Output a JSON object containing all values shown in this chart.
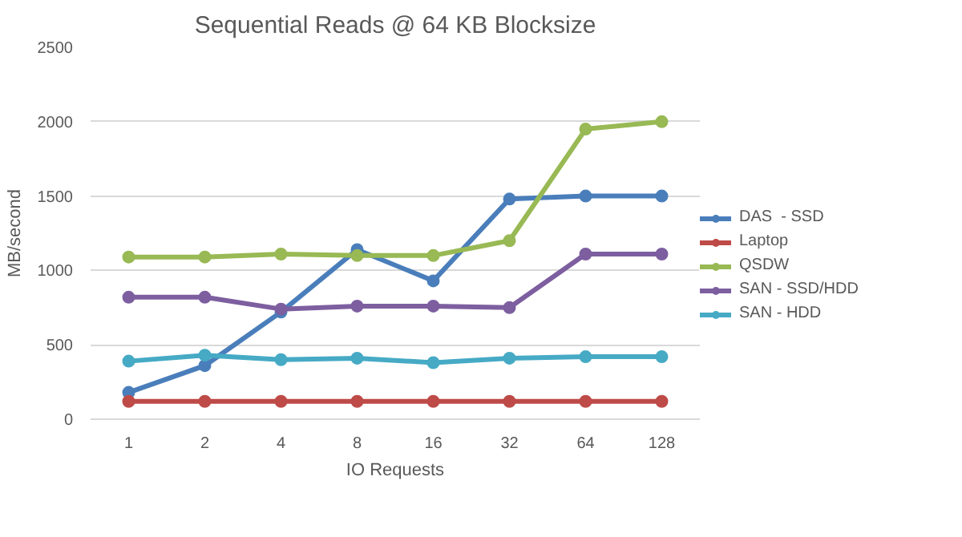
{
  "chart_data": {
    "type": "line",
    "title": "Sequential Reads @ 64 KB Blocksize",
    "xlabel": "IO Requests",
    "ylabel": "MB/second",
    "categories": [
      "1",
      "2",
      "4",
      "8",
      "16",
      "32",
      "64",
      "128"
    ],
    "series": [
      {
        "name": "DAS  - SSD",
        "color": "#4a7ebb",
        "values": [
          180,
          360,
          720,
          1140,
          930,
          1480,
          1500,
          1500
        ]
      },
      {
        "name": "Laptop",
        "color": "#be4b48",
        "values": [
          120,
          120,
          120,
          120,
          120,
          120,
          120,
          120
        ]
      },
      {
        "name": "QSDW",
        "color": "#98b954",
        "values": [
          1090,
          1090,
          1110,
          1100,
          1100,
          1200,
          1950,
          2000
        ]
      },
      {
        "name": "SAN - SSD/HDD",
        "color": "#7d5fa0",
        "values": [
          820,
          820,
          740,
          760,
          760,
          750,
          1110,
          1110
        ]
      },
      {
        "name": "SAN - HDD",
        "color": "#46aac5",
        "values": [
          390,
          430,
          400,
          410,
          380,
          410,
          420,
          420
        ]
      }
    ],
    "ylim": [
      0,
      2500
    ],
    "yticks": [
      0,
      500,
      1000,
      1500,
      2000,
      2500
    ],
    "grid": "y",
    "legend": "right",
    "marker": "circle",
    "line_style": "solid"
  }
}
